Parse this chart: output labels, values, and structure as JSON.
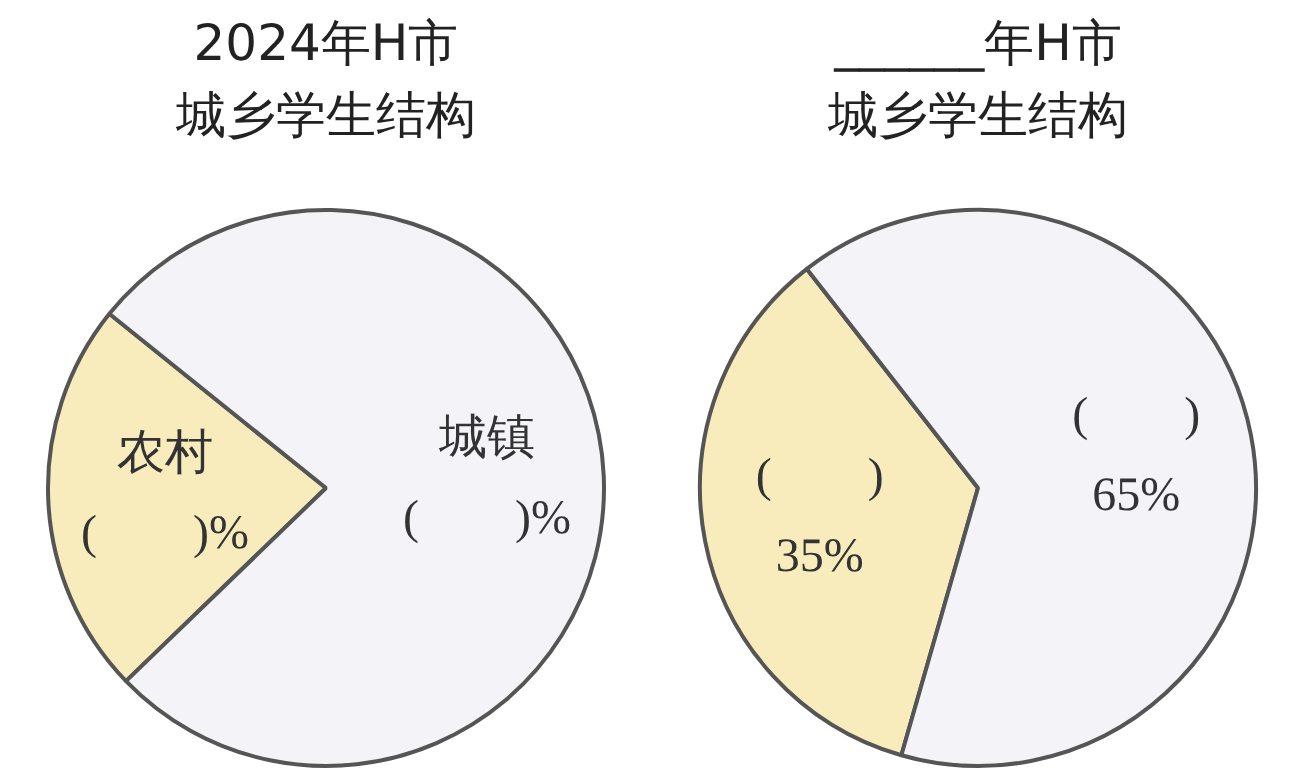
{
  "chart_data": [
    {
      "type": "pie",
      "title": "2024年H市城乡学生结构",
      "categories": [
        "农村",
        "城镇"
      ],
      "values": [
        23,
        77
      ],
      "colors": [
        "#f8ecbc",
        "#f4f3f8"
      ],
      "value_labels": [
        "(　　)%",
        "(　　)%"
      ]
    },
    {
      "type": "pie",
      "title": "______年H市城乡学生结构",
      "categories": [
        "(　　)",
        "(　　)"
      ],
      "values": [
        35,
        65
      ],
      "colors": [
        "#f8ecbc",
        "#f4f3f8"
      ],
      "value_labels": [
        "35%",
        "65%"
      ]
    }
  ]
}
